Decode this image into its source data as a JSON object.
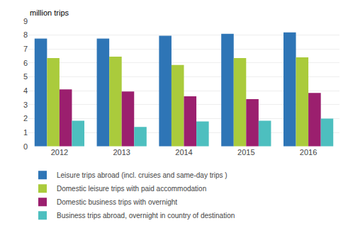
{
  "chart_data": {
    "type": "bar",
    "ylabel": "million trips",
    "categories": [
      "2012",
      "2013",
      "2014",
      "2015",
      "2016"
    ],
    "series": [
      {
        "name": "Leisure trips abroad (incl. cruises and same-day trips )",
        "color": "#2E75B6",
        "values": [
          7.75,
          7.75,
          7.95,
          8.1,
          8.2
        ]
      },
      {
        "name": "Domestic leisure trips with paid accommodation",
        "color": "#AACB3C",
        "values": [
          6.35,
          6.45,
          5.85,
          6.35,
          6.4
        ]
      },
      {
        "name": "Domestic business trips with overnight",
        "color": "#9B1F6E",
        "values": [
          4.1,
          3.95,
          3.6,
          3.4,
          3.85
        ]
      },
      {
        "name": "Business trips abroad, overnight in country of destination",
        "color": "#4DBFBF",
        "values": [
          1.85,
          1.4,
          1.8,
          1.85,
          2.0
        ]
      }
    ],
    "ylim": [
      0,
      9
    ],
    "yticks": [
      0,
      1,
      2,
      3,
      4,
      5,
      6,
      7,
      8,
      9
    ],
    "grid": true,
    "legend": "bottom"
  }
}
